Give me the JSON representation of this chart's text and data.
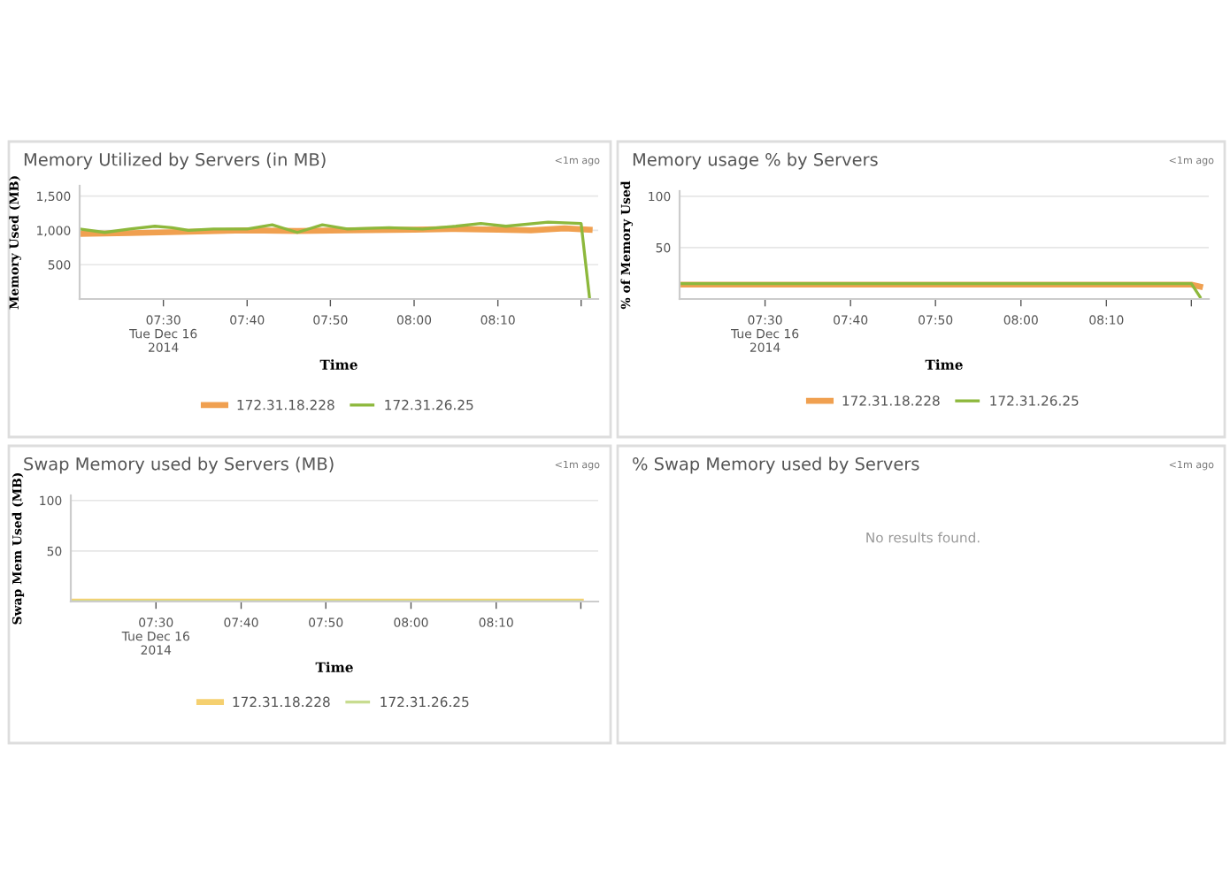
{
  "chart_data": [
    {
      "type": "line",
      "title": "Memory Utilized by Servers (in MB)",
      "xlabel": "Time",
      "ylabel": "Memory Used (MB)",
      "annotations": [
        "<1m ago"
      ],
      "xlim": [
        7.333,
        8.367
      ],
      "ylim": [
        0,
        1650
      ],
      "xticks": [
        {
          "value": 7.5,
          "label": "07:30\nTue Dec 16\n2014"
        },
        {
          "value": 7.667,
          "label": "07:40"
        },
        {
          "value": 7.833,
          "label": "07:50"
        },
        {
          "value": 8.0,
          "label": "08:00"
        },
        {
          "value": 8.167,
          "label": "08:10"
        },
        {
          "value": 8.333,
          "label": null
        }
      ],
      "yticks": [
        500,
        {
          "value": 1000,
          "label": "1,000"
        },
        {
          "value": 1500,
          "label": "1,500"
        }
      ],
      "grid": "y",
      "legend": "bottom",
      "series": [
        {
          "name": "172.31.18.228",
          "color": "#f0a050",
          "x": [
            7.333,
            7.433,
            7.55,
            7.667,
            7.767,
            7.867,
            8.0,
            8.083,
            8.167,
            8.233,
            8.3,
            8.35
          ],
          "values": [
            950,
            960,
            980,
            1000,
            990,
            1000,
            1010,
            1020,
            1010,
            1000,
            1030,
            1010
          ]
        },
        {
          "name": "172.31.26.25",
          "color": "#8db83c",
          "x": [
            7.333,
            7.383,
            7.433,
            7.483,
            7.517,
            7.55,
            7.6,
            7.667,
            7.717,
            7.767,
            7.817,
            7.867,
            7.95,
            8.017,
            8.083,
            8.133,
            8.183,
            8.267,
            8.333,
            8.35
          ],
          "values": [
            1020,
            970,
            1020,
            1060,
            1040,
            1000,
            1020,
            1020,
            1080,
            970,
            1080,
            1020,
            1040,
            1020,
            1060,
            1100,
            1060,
            1120,
            1100,
            0
          ]
        }
      ]
    },
    {
      "type": "line",
      "title": "Memory usage % by Servers",
      "xlabel": "Time",
      "ylabel": "% of Memory Used",
      "annotations": [
        "<1m ago"
      ],
      "xlim": [
        7.333,
        8.367
      ],
      "ylim": [
        0,
        105
      ],
      "xticks": [
        {
          "value": 7.5,
          "label": "07:30\nTue Dec 16\n2014"
        },
        {
          "value": 7.667,
          "label": "07:40"
        },
        {
          "value": 7.833,
          "label": "07:50"
        },
        {
          "value": 8.0,
          "label": "08:00"
        },
        {
          "value": 8.167,
          "label": "08:10"
        },
        {
          "value": 8.333,
          "label": null
        }
      ],
      "yticks": [
        50,
        100
      ],
      "grid": "y",
      "legend": "bottom",
      "series": [
        {
          "name": "172.31.18.228",
          "color": "#f0a050",
          "x": [
            7.333,
            7.667,
            8.0,
            8.333,
            8.35
          ],
          "values": [
            14,
            14,
            14,
            14,
            12
          ]
        },
        {
          "name": "172.31.26.25",
          "color": "#8db83c",
          "x": [
            7.333,
            7.667,
            8.0,
            8.333,
            8.35
          ],
          "values": [
            15,
            15,
            15,
            15,
            2
          ]
        }
      ]
    },
    {
      "type": "line",
      "title": "Swap Memory used by Servers (MB)",
      "xlabel": "Time",
      "ylabel": "Swap Mem Used (MB)",
      "annotations": [
        "<1m ago"
      ],
      "xlim": [
        7.333,
        8.367
      ],
      "ylim": [
        0,
        105
      ],
      "xticks": [
        {
          "value": 7.5,
          "label": "07:30\nTue Dec 16\n2014"
        },
        {
          "value": 7.667,
          "label": "07:40"
        },
        {
          "value": 7.833,
          "label": "07:50"
        },
        {
          "value": 8.0,
          "label": "08:00"
        },
        {
          "value": 8.167,
          "label": "08:10"
        },
        {
          "value": 8.333,
          "label": null
        }
      ],
      "yticks": [
        50,
        100
      ],
      "grid": "y",
      "legend": "bottom",
      "series": [
        {
          "name": "172.31.18.228",
          "color": "#f5d070",
          "x": [
            7.333,
            8.333
          ],
          "values": [
            0,
            0
          ]
        },
        {
          "name": "172.31.26.25",
          "color": "#c8dc90",
          "x": [
            7.333,
            8.333
          ],
          "values": [
            0,
            0
          ]
        }
      ]
    },
    {
      "type": "other",
      "title": "% Swap Memory used by Servers",
      "annotations": [
        "<1m ago",
        "No results found."
      ]
    }
  ]
}
